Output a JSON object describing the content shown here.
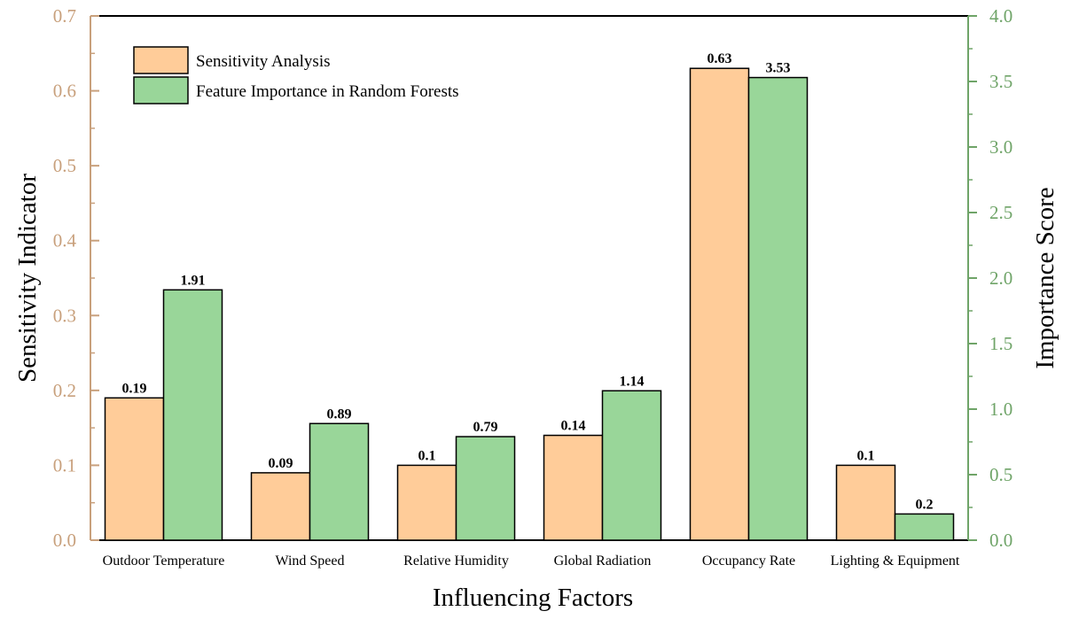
{
  "chart_data": {
    "type": "bar",
    "title": "",
    "xlabel": "Influencing Factors",
    "ylabel_left": "Sensitivity Indicator",
    "ylabel_right": "Importance Score",
    "categories": [
      "Outdoor Temperature",
      "Wind Speed",
      "Relative Humidity",
      "Global Radiation",
      "Occupancy Rate",
      "Lighting & Equipment"
    ],
    "series": [
      {
        "name": "Sensitivity Analysis",
        "axis": "left",
        "color": "#FFCC99",
        "values": [
          0.19,
          0.09,
          0.1,
          0.14,
          0.63,
          0.1
        ],
        "labels": [
          "0.19",
          "0.09",
          "0.1",
          "0.14",
          "0.63",
          "0.1"
        ]
      },
      {
        "name": "Feature Importance in Random Forests",
        "axis": "right",
        "color": "#99D699",
        "values": [
          1.91,
          0.89,
          0.79,
          1.14,
          3.53,
          0.2
        ],
        "labels": [
          "1.91",
          "0.89",
          "0.79",
          "1.14",
          "3.53",
          "0.2"
        ]
      }
    ],
    "ylim_left": [
      0,
      0.7
    ],
    "ylim_right": [
      0,
      4.0
    ],
    "yticks_left": [
      "0.0",
      "0.1",
      "0.2",
      "0.3",
      "0.4",
      "0.5",
      "0.6",
      "0.7"
    ],
    "yticks_right": [
      "0.0",
      "0.5",
      "1.0",
      "1.5",
      "2.0",
      "2.5",
      "3.0",
      "3.5",
      "4.0"
    ],
    "left_axis_color": "#C8A07C",
    "right_axis_color": "#6FA468",
    "grid": false,
    "legend_position": "top-left"
  }
}
